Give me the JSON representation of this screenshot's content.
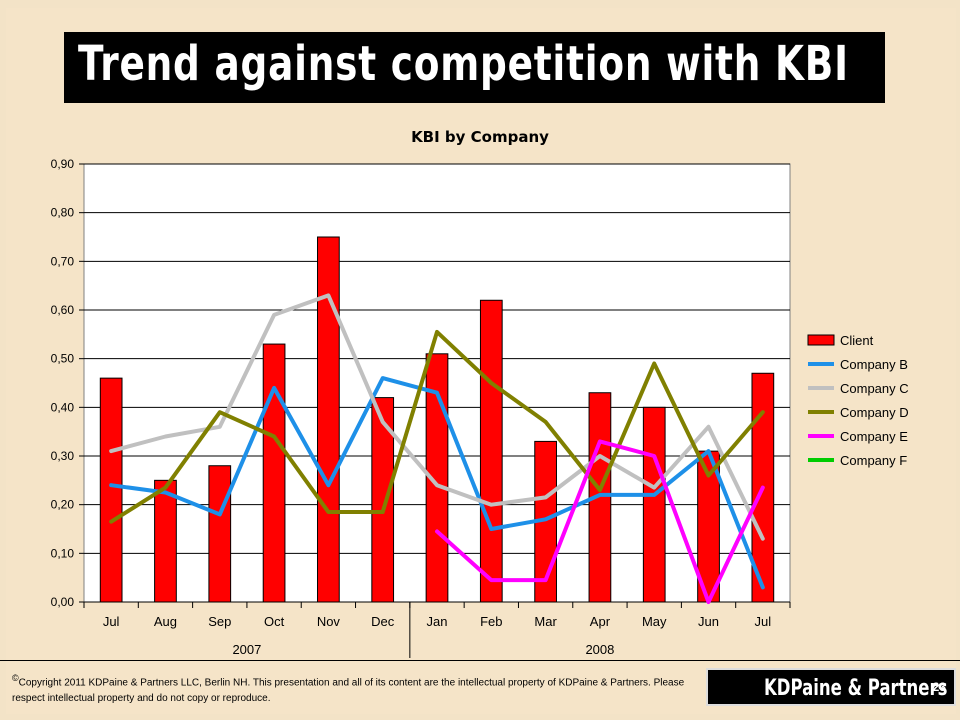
{
  "slide": {
    "title": "Trend against competition with KBI",
    "copyright_symbol": "©",
    "copyright": "Copyright 2011 KDPaine & Partners LLC, Berlin NH. This presentation and all of its content are the intellectual property of KDPaine & Partners. Please respect intellectual property and do not copy or reproduce.",
    "logo": "KDPaine & Partners",
    "page_number": "23"
  },
  "chart_data": {
    "type": "bar",
    "title": "KBI by Company",
    "categories": [
      "Jul",
      "Aug",
      "Sep",
      "Oct",
      "Nov",
      "Dec",
      "Jan",
      "Feb",
      "Mar",
      "Apr",
      "May",
      "Jun",
      "Jul"
    ],
    "year_groups": [
      {
        "label": "2007",
        "start": 0,
        "end": 5
      },
      {
        "label": "2008",
        "start": 6,
        "end": 12
      }
    ],
    "ylim": [
      0,
      0.9
    ],
    "yticks": [
      "0,00",
      "0,10",
      "0,20",
      "0,30",
      "0,40",
      "0,50",
      "0,60",
      "0,70",
      "0,80",
      "0,90"
    ],
    "grid": true,
    "legend_position": "right",
    "series": [
      {
        "name": "Client",
        "kind": "bar",
        "color": "#ff0000",
        "values": [
          0.46,
          0.25,
          0.28,
          0.53,
          0.75,
          0.42,
          0.51,
          0.62,
          0.33,
          0.43,
          0.4,
          0.31,
          0.47
        ]
      },
      {
        "name": "Company B",
        "kind": "line",
        "color": "#1e90e8",
        "values": [
          0.24,
          0.225,
          0.18,
          0.44,
          0.24,
          0.46,
          0.43,
          0.15,
          0.17,
          0.22,
          0.22,
          0.31,
          0.03
        ]
      },
      {
        "name": "Company C",
        "kind": "line",
        "color": "#c0c0c0",
        "values": [
          0.31,
          0.34,
          0.36,
          0.59,
          0.63,
          0.37,
          0.24,
          0.2,
          0.215,
          0.3,
          0.235,
          0.36,
          0.13
        ]
      },
      {
        "name": "Company D",
        "kind": "line",
        "color": "#808000",
        "values": [
          0.165,
          0.235,
          0.39,
          0.34,
          0.185,
          0.185,
          0.555,
          0.45,
          0.37,
          0.23,
          0.49,
          0.26,
          0.39
        ]
      },
      {
        "name": "Company E",
        "kind": "line",
        "color": "#ff00ff",
        "values": [
          null,
          null,
          null,
          null,
          null,
          null,
          0.145,
          0.045,
          0.045,
          0.33,
          0.3,
          0.0,
          0.235
        ]
      },
      {
        "name": "Company F",
        "kind": "line",
        "color": "#00cc00",
        "values": [
          null,
          null,
          null,
          null,
          null,
          null,
          null,
          null,
          null,
          null,
          null,
          null,
          null
        ]
      }
    ]
  }
}
